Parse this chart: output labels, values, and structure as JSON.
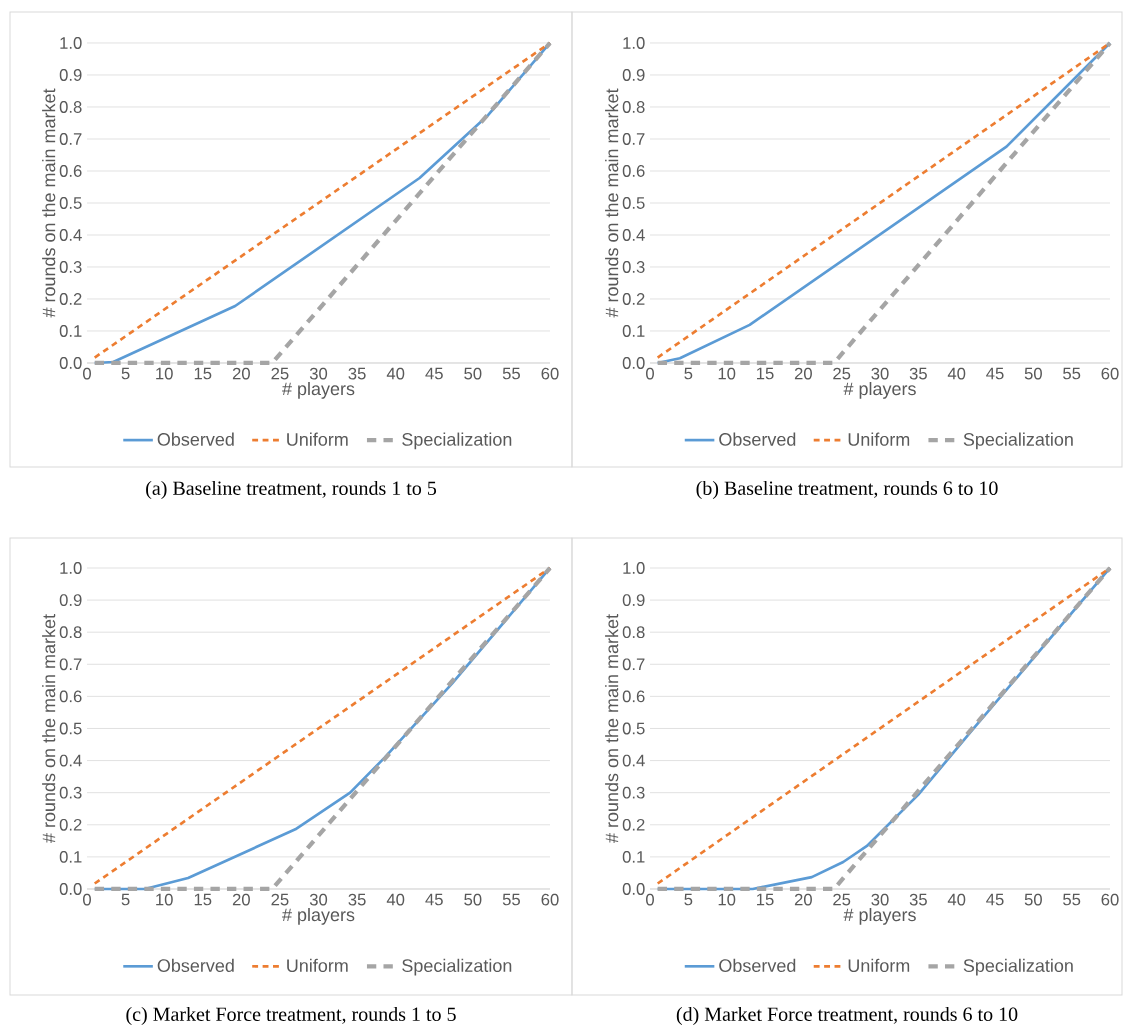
{
  "chart_data": [
    {
      "type": "line",
      "title": "(a) Baseline treatment, rounds 1 to 5",
      "xlabel": "# players",
      "ylabel": "# rounds on the main market",
      "xlim": [
        0,
        60
      ],
      "ylim": [
        0,
        1
      ],
      "xticks": [
        0,
        5,
        10,
        15,
        20,
        25,
        30,
        35,
        40,
        45,
        50,
        55,
        60
      ],
      "yticks": [
        {
          "value": 0,
          "label": "0.0"
        },
        {
          "value": 0.1,
          "label": "0.1"
        },
        {
          "value": 0.2,
          "label": "0.2"
        },
        {
          "value": 0.3,
          "label": "0.3"
        },
        {
          "value": 0.4,
          "label": "0.4"
        },
        {
          "value": 0.5,
          "label": "0.5"
        },
        {
          "value": 0.6,
          "label": "0.6"
        },
        {
          "value": 0.7,
          "label": "0.7"
        },
        {
          "value": 0.8,
          "label": "0.8"
        },
        {
          "value": 0.9,
          "label": "0.9"
        },
        {
          "value": 1,
          "label": "1.0"
        }
      ],
      "grid": "y",
      "legend": "bottom",
      "series": [
        {
          "name": "Observed",
          "color": "#5b9bd5",
          "line_style": "solid",
          "x": [
            1,
            3.4,
            19.2,
            43.1,
            52,
            60
          ],
          "values": [
            0,
            0.003,
            0.178,
            0.578,
            0.775,
            1
          ]
        },
        {
          "name": "Uniform",
          "color": "#ed7d31",
          "line_style": "dashed",
          "x": [
            1,
            60
          ],
          "values": [
            0.017,
            1
          ]
        },
        {
          "name": "Specialization",
          "color": "#a5a5a5",
          "line_style": "dashed",
          "x": [
            1,
            24,
            60
          ],
          "values": [
            0,
            0,
            1
          ]
        }
      ]
    },
    {
      "type": "line",
      "title": "(b) Baseline treatment, rounds 6 to 10",
      "xlabel": "# players",
      "ylabel": "# rounds on the main market",
      "xlim": [
        0,
        60
      ],
      "ylim": [
        0,
        1
      ],
      "xticks": [
        0,
        5,
        10,
        15,
        20,
        25,
        30,
        35,
        40,
        45,
        50,
        55,
        60
      ],
      "yticks": [
        {
          "value": 0,
          "label": "0.0"
        },
        {
          "value": 0.1,
          "label": "0.1"
        },
        {
          "value": 0.2,
          "label": "0.2"
        },
        {
          "value": 0.3,
          "label": "0.3"
        },
        {
          "value": 0.4,
          "label": "0.4"
        },
        {
          "value": 0.5,
          "label": "0.5"
        },
        {
          "value": 0.6,
          "label": "0.6"
        },
        {
          "value": 0.7,
          "label": "0.7"
        },
        {
          "value": 0.8,
          "label": "0.8"
        },
        {
          "value": 0.9,
          "label": "0.9"
        },
        {
          "value": 1,
          "label": "1.0"
        }
      ],
      "grid": "y",
      "legend": "bottom",
      "series": [
        {
          "name": "Observed",
          "color": "#5b9bd5",
          "line_style": "solid",
          "x": [
            1,
            3.9,
            13,
            46.5,
            60
          ],
          "values": [
            0,
            0.015,
            0.119,
            0.676,
            1
          ]
        },
        {
          "name": "Uniform",
          "color": "#ed7d31",
          "line_style": "dashed",
          "x": [
            1,
            60
          ],
          "values": [
            0.017,
            1
          ]
        },
        {
          "name": "Specialization",
          "color": "#a5a5a5",
          "line_style": "dashed",
          "x": [
            1,
            24,
            60
          ],
          "values": [
            0,
            0,
            1
          ]
        }
      ]
    },
    {
      "type": "line",
      "title": "(c) Market Force treatment, rounds 1 to 5",
      "xlabel": "# players",
      "ylabel": "# rounds on the main market",
      "xlim": [
        0,
        60
      ],
      "ylim": [
        0,
        1
      ],
      "xticks": [
        0,
        5,
        10,
        15,
        20,
        25,
        30,
        35,
        40,
        45,
        50,
        55,
        60
      ],
      "yticks": [
        {
          "value": 0,
          "label": "0.0"
        },
        {
          "value": 0.1,
          "label": "0.1"
        },
        {
          "value": 0.2,
          "label": "0.2"
        },
        {
          "value": 0.3,
          "label": "0.3"
        },
        {
          "value": 0.4,
          "label": "0.4"
        },
        {
          "value": 0.5,
          "label": "0.5"
        },
        {
          "value": 0.6,
          "label": "0.6"
        },
        {
          "value": 0.7,
          "label": "0.7"
        },
        {
          "value": 0.8,
          "label": "0.8"
        },
        {
          "value": 0.9,
          "label": "0.9"
        },
        {
          "value": 1,
          "label": "1.0"
        }
      ],
      "grid": "y",
      "legend": "bottom",
      "series": [
        {
          "name": "Observed",
          "color": "#5b9bd5",
          "line_style": "solid",
          "x": [
            1,
            3,
            7.5,
            13.1,
            27,
            34.1,
            38.6,
            47.3,
            60
          ],
          "values": [
            0,
            0,
            0,
            0.034,
            0.186,
            0.3,
            0.41,
            0.64,
            1
          ]
        },
        {
          "name": "Uniform",
          "color": "#ed7d31",
          "line_style": "dashed",
          "x": [
            1,
            60
          ],
          "values": [
            0.017,
            1
          ]
        },
        {
          "name": "Specialization",
          "color": "#a5a5a5",
          "line_style": "dashed",
          "x": [
            1,
            24,
            60
          ],
          "values": [
            0,
            0,
            1
          ]
        }
      ]
    },
    {
      "type": "line",
      "title": "(d) Market Force treatment, rounds 6 to 10",
      "xlabel": "# players",
      "ylabel": "# rounds on the main market",
      "xlim": [
        0,
        60
      ],
      "ylim": [
        0,
        1
      ],
      "xticks": [
        0,
        5,
        10,
        15,
        20,
        25,
        30,
        35,
        40,
        45,
        50,
        55,
        60
      ],
      "yticks": [
        {
          "value": 0,
          "label": "0.0"
        },
        {
          "value": 0.1,
          "label": "0.1"
        },
        {
          "value": 0.2,
          "label": "0.2"
        },
        {
          "value": 0.3,
          "label": "0.3"
        },
        {
          "value": 0.4,
          "label": "0.4"
        },
        {
          "value": 0.5,
          "label": "0.5"
        },
        {
          "value": 0.6,
          "label": "0.6"
        },
        {
          "value": 0.7,
          "label": "0.7"
        },
        {
          "value": 0.8,
          "label": "0.8"
        },
        {
          "value": 0.9,
          "label": "0.9"
        },
        {
          "value": 1,
          "label": "1.0"
        }
      ],
      "grid": "y",
      "legend": "bottom",
      "series": [
        {
          "name": "Observed",
          "color": "#5b9bd5",
          "line_style": "solid",
          "x": [
            1,
            3,
            13.4,
            21.1,
            25.2,
            28.3,
            35,
            42.1,
            60
          ],
          "values": [
            0,
            0,
            0,
            0.037,
            0.084,
            0.134,
            0.294,
            0.497,
            1
          ]
        },
        {
          "name": "Uniform",
          "color": "#ed7d31",
          "line_style": "dashed",
          "x": [
            1,
            60
          ],
          "values": [
            0.017,
            1
          ]
        },
        {
          "name": "Specialization",
          "color": "#a5a5a5",
          "line_style": "dashed",
          "x": [
            1,
            24,
            60
          ],
          "values": [
            0,
            0,
            1
          ]
        }
      ]
    }
  ]
}
